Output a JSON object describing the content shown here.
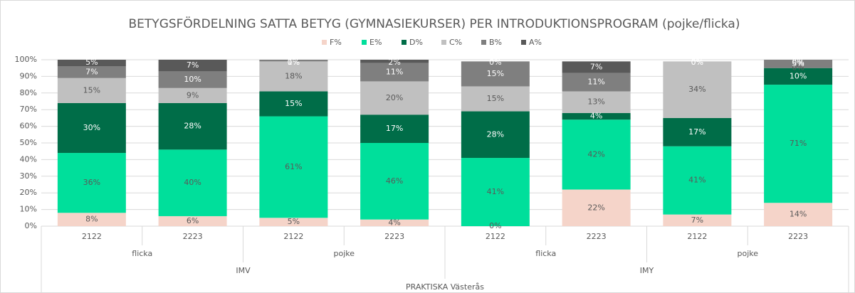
{
  "chart_data": {
    "type": "bar",
    "stacked": true,
    "title": "BETYGSFÖRDELNING SATTA BETYG (GYMNASIEKURSER) PER INTRODUKTIONSPROGRAM (pojke/flicka)",
    "categories": [
      "2122",
      "2223",
      "2122",
      "2223",
      "2122",
      "2223",
      "2122",
      "2223"
    ],
    "gender_groups": [
      "flicka",
      "pojke",
      "flicka",
      "pojke"
    ],
    "program_groups": [
      "IMV",
      "IMY"
    ],
    "top_group": "PRAKTISKA Västerås",
    "ylim": [
      0,
      100
    ],
    "yticks": [
      {
        "value": 0,
        "label": "0%"
      },
      {
        "value": 10,
        "label": "10%"
      },
      {
        "value": 20,
        "label": "20%"
      },
      {
        "value": 30,
        "label": "30%"
      },
      {
        "value": 40,
        "label": "40%"
      },
      {
        "value": 50,
        "label": "50%"
      },
      {
        "value": 60,
        "label": "60%"
      },
      {
        "value": 70,
        "label": "70%"
      },
      {
        "value": 80,
        "label": "80%"
      },
      {
        "value": 90,
        "label": "90%"
      },
      {
        "value": 100,
        "label": "100%"
      }
    ],
    "grid": true,
    "legend": "top",
    "series": [
      {
        "name": "F%",
        "color": "#f5d4c9",
        "values": [
          8,
          6,
          5,
          4,
          0,
          22,
          7,
          14
        ],
        "value_labels": [
          "8%",
          "6%",
          "5%",
          "4%",
          "0%",
          "22%",
          "7%",
          "14%"
        ]
      },
      {
        "name": "E%",
        "color": "#00df9b",
        "values": [
          36,
          40,
          61,
          46,
          41,
          42,
          41,
          71
        ],
        "value_labels": [
          "36%",
          "40%",
          "61%",
          "46%",
          "41%",
          "42%",
          "41%",
          "71%"
        ]
      },
      {
        "name": "D%",
        "color": "#006d48",
        "values": [
          30,
          28,
          15,
          17,
          28,
          4,
          17,
          10
        ],
        "value_labels": [
          "30%",
          "28%",
          "15%",
          "17%",
          "28%",
          "4%",
          "17%",
          "10%"
        ]
      },
      {
        "name": "C%",
        "color": "#c0c0c0",
        "values": [
          15,
          9,
          18,
          20,
          15,
          13,
          34,
          0
        ],
        "value_labels": [
          "15%",
          "9%",
          "18%",
          "20%",
          "15%",
          "13%",
          "34%",
          "0%"
        ]
      },
      {
        "name": "B%",
        "color": "#7f7f7f",
        "values": [
          7,
          10,
          1,
          11,
          15,
          11,
          0,
          5
        ],
        "value_labels": [
          "7%",
          "10%",
          "1%",
          "11%",
          "15%",
          "11%",
          "0%",
          "5%"
        ]
      },
      {
        "name": "A%",
        "color": "#595959",
        "values": [
          5,
          7,
          0,
          2,
          0,
          7,
          0,
          0
        ],
        "value_labels": [
          "5%",
          "7%",
          "0%",
          "2%",
          "0%",
          "7%",
          "0%",
          "0%"
        ]
      }
    ]
  }
}
